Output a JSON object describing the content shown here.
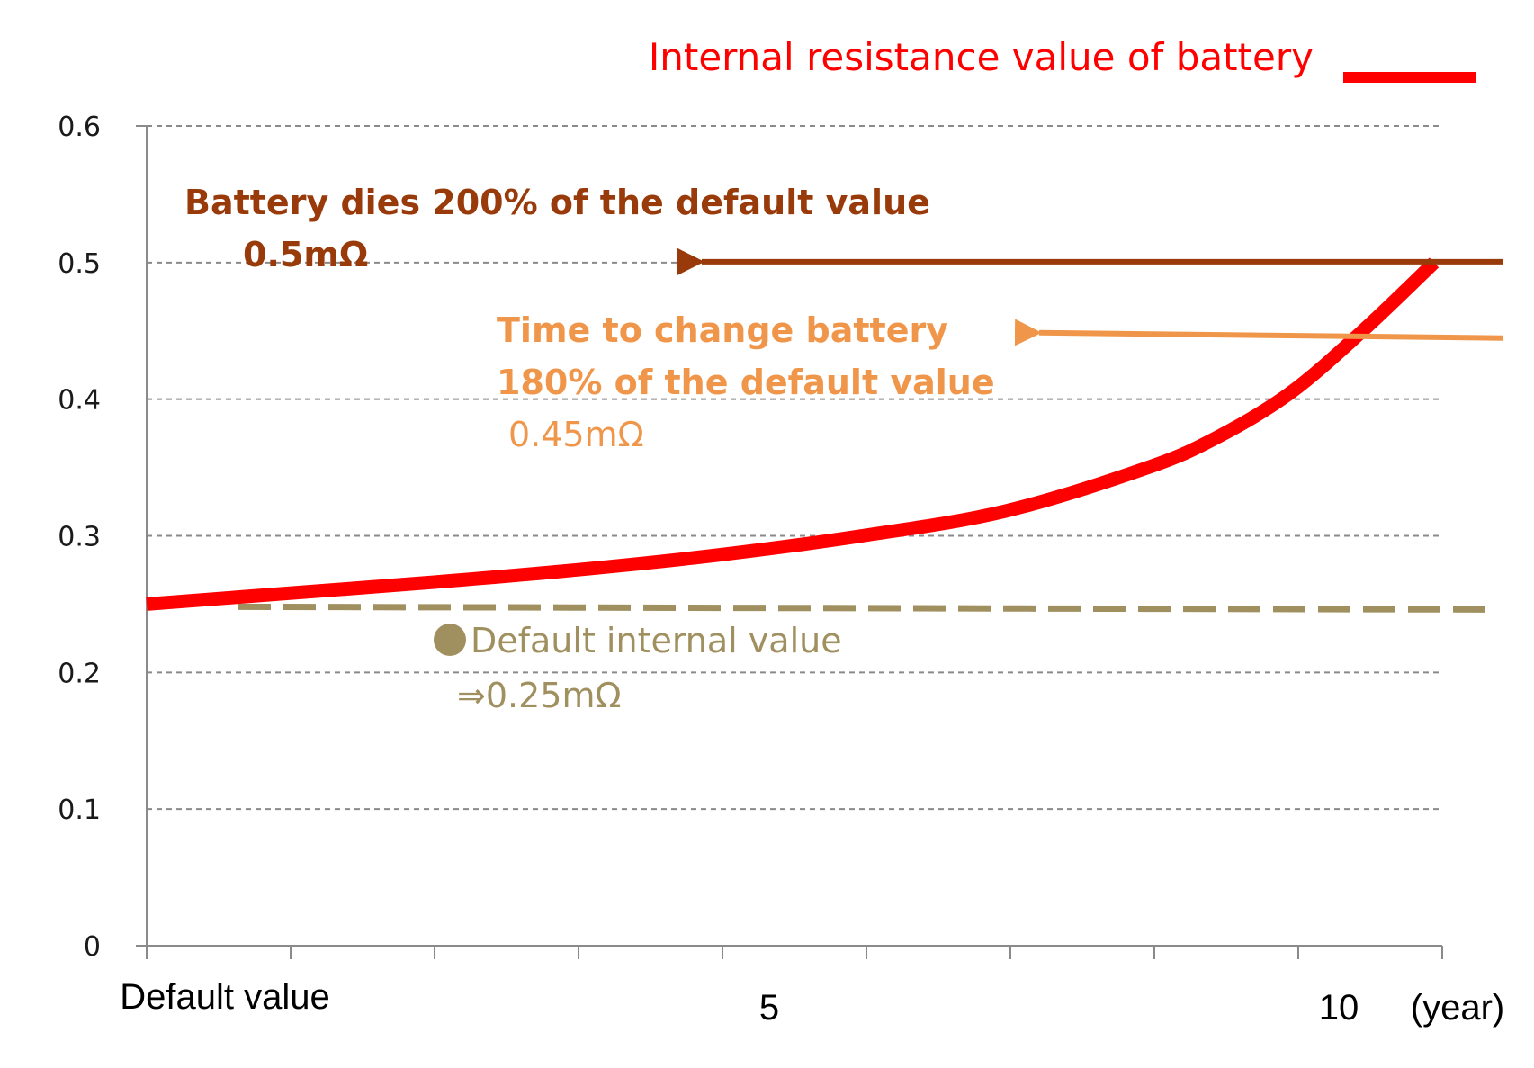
{
  "chart_data": {
    "type": "line",
    "title": "",
    "xlabel": "",
    "ylabel": "",
    "unit_label": "(year)",
    "x_tick_labels": [
      {
        "x": 0,
        "label": "Default value"
      },
      {
        "x": 5,
        "label": "5"
      },
      {
        "x": 10,
        "label": "10"
      }
    ],
    "y_tick_labels": [
      "0",
      "0.1",
      "0.2",
      "0.3",
      "0.4",
      "0.5",
      "0.6"
    ],
    "xlim": [
      0,
      9
    ],
    "ylim": [
      0,
      0.6
    ],
    "x_tick_count": 10,
    "grid": true,
    "grid_style": "dashed horizontal",
    "legend_placement": "top-right",
    "series": [
      {
        "name": "Internal resistance value of battery",
        "color": "#ff0000",
        "x": [
          0,
          1,
          2,
          3,
          4,
          5,
          6,
          7,
          7.5,
          8,
          8.5,
          9
        ],
        "y": [
          0.25,
          0.258,
          0.266,
          0.275,
          0.286,
          0.3,
          0.318,
          0.35,
          0.373,
          0.405,
          0.45,
          0.5
        ]
      }
    ],
    "reference_lines": [
      {
        "name": "default",
        "y": 0.25,
        "style": "dashed",
        "color": "#a09060"
      }
    ],
    "annotations": [
      {
        "id": "dies",
        "color": "#993a0a",
        "lines": [
          "Battery dies 200% of the default value",
          "0.5mΩ"
        ],
        "arrow_y": 0.5
      },
      {
        "id": "change",
        "color": "#f0964a",
        "lines": [
          "Time to change battery",
          "180% of the default value",
          "0.45mΩ"
        ],
        "arrow_y": 0.45
      },
      {
        "id": "default",
        "color": "#a09060",
        "marker": "●",
        "lines": [
          "Default internal value",
          "⇒0.25mΩ"
        ],
        "value": 0.25
      }
    ]
  }
}
